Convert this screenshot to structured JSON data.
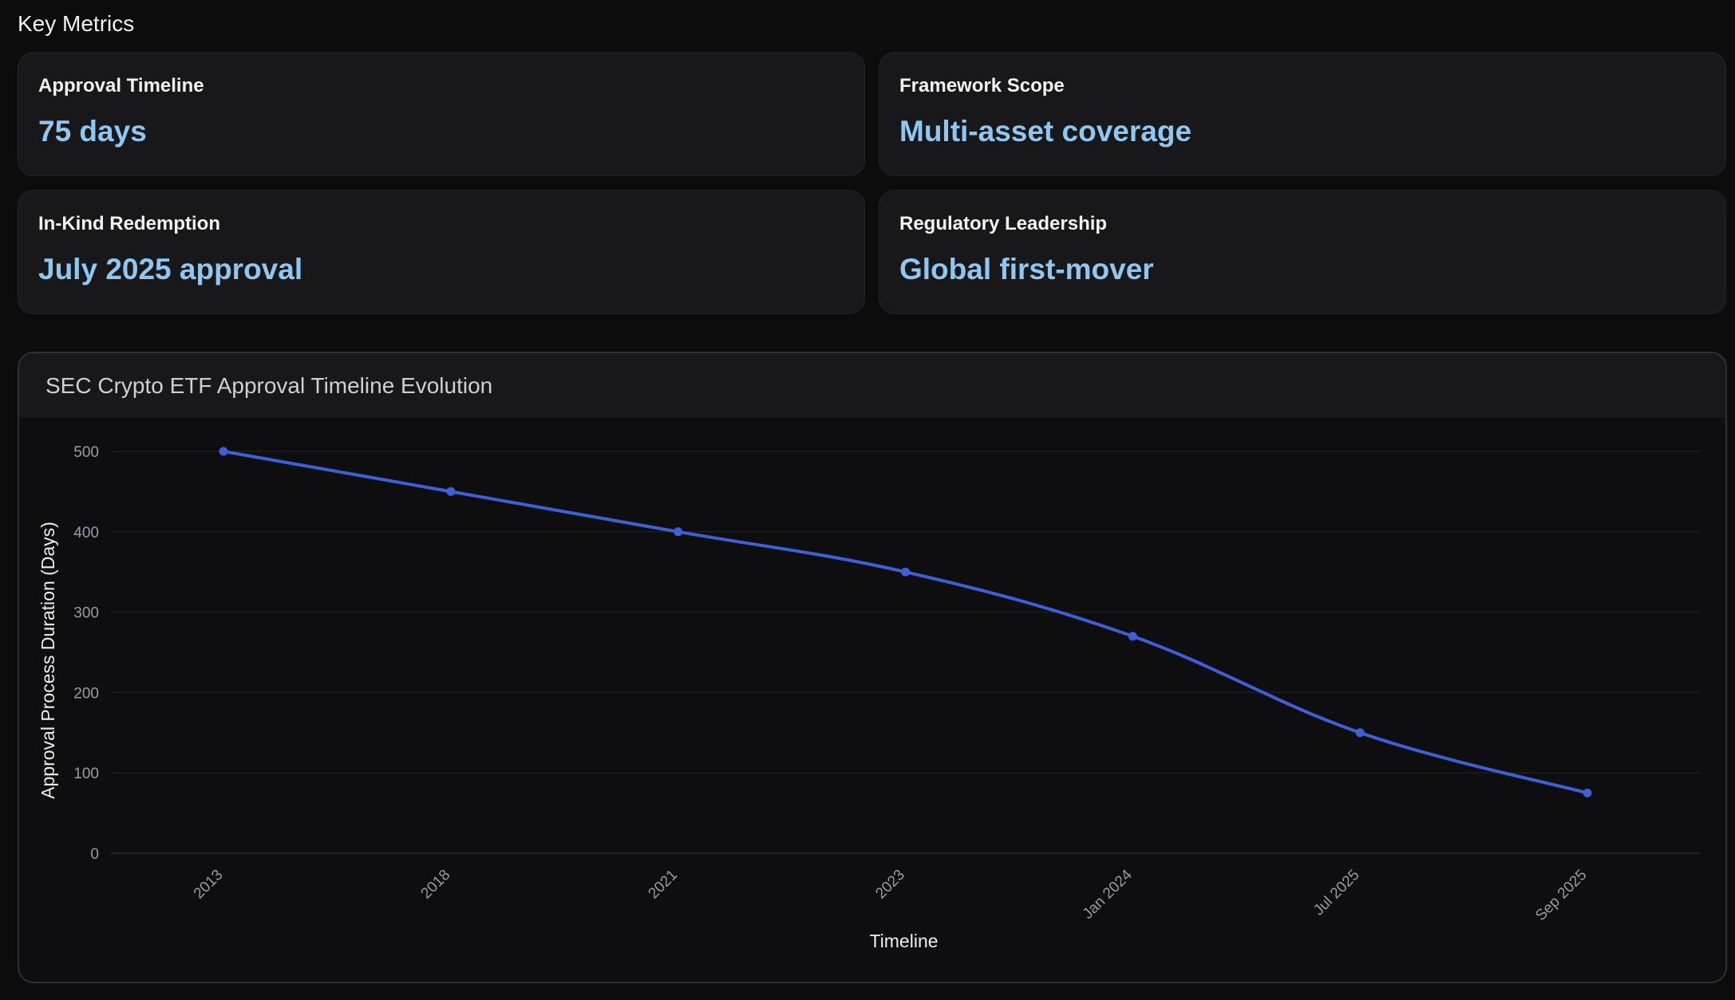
{
  "section_title": "Key Metrics",
  "metrics": [
    {
      "label": "Approval Timeline",
      "value": "75 days"
    },
    {
      "label": "Framework Scope",
      "value": "Multi-asset coverage"
    },
    {
      "label": "In-Kind Redemption",
      "value": "July 2025 approval"
    },
    {
      "label": "Regulatory Leadership",
      "value": "Global first-mover"
    }
  ],
  "colors": {
    "background": "#0c0c0d",
    "card_background": "#18181a",
    "metric_value": "#8fc7f2",
    "series_line": "#3f5fd6",
    "gridline": "#1e1e22"
  },
  "chart_data": {
    "type": "line",
    "title": "SEC Crypto ETF Approval Timeline Evolution",
    "xlabel": "Timeline",
    "ylabel": "Approval Process Duration (Days)",
    "categories": [
      "2013",
      "2018",
      "2021",
      "2023",
      "Jan 2024",
      "Jul 2025",
      "Sep 2025"
    ],
    "series": [
      {
        "values": [
          500,
          450,
          400,
          350,
          270,
          150,
          75
        ]
      }
    ],
    "ylim": [
      0,
      500
    ],
    "yticks": [
      0,
      100,
      200,
      300,
      400,
      500
    ],
    "grid": true,
    "legend": "none",
    "smooth": true
  }
}
